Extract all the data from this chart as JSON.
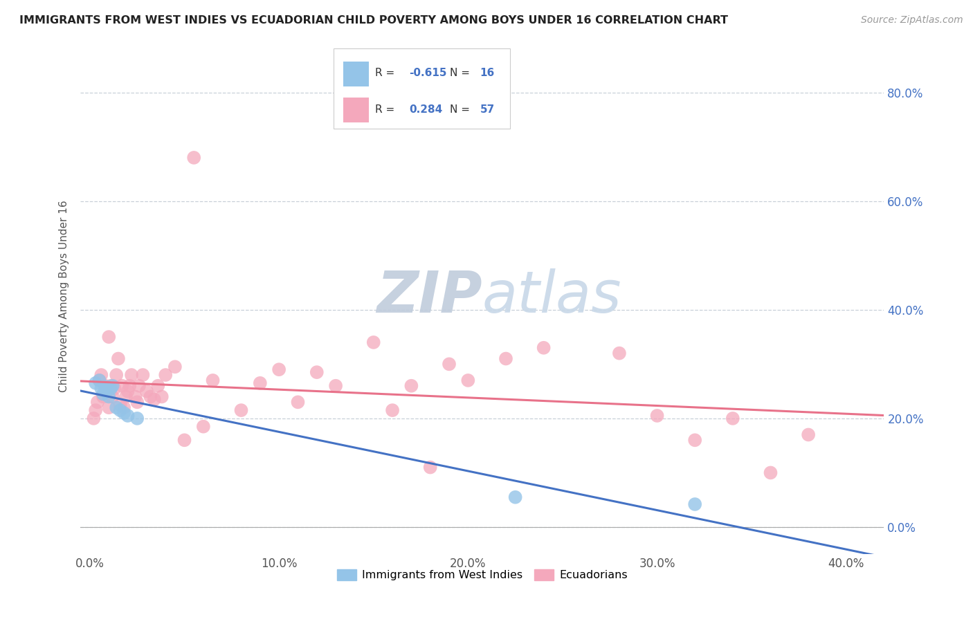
{
  "title": "IMMIGRANTS FROM WEST INDIES VS ECUADORIAN CHILD POVERTY AMONG BOYS UNDER 16 CORRELATION CHART",
  "source": "Source: ZipAtlas.com",
  "ylabel": "Child Poverty Among Boys Under 16",
  "legend1_label": "Immigrants from West Indies",
  "legend2_label": "Ecuadorians",
  "R1": -0.615,
  "N1": 16,
  "R2": 0.284,
  "N2": 57,
  "xlim": [
    -0.005,
    0.42
  ],
  "ylim": [
    -0.05,
    0.9
  ],
  "yticks": [
    0.0,
    0.2,
    0.4,
    0.6,
    0.8
  ],
  "ytick_labels": [
    "0.0%",
    "20.0%",
    "40.0%",
    "60.0%",
    "80.0%"
  ],
  "xticks": [
    0.0,
    0.1,
    0.2,
    0.3,
    0.4
  ],
  "xtick_labels": [
    "0.0%",
    "10.0%",
    "20.0%",
    "30.0%",
    "40.0%"
  ],
  "blue_color": "#94c4e8",
  "pink_color": "#f4a8bc",
  "blue_line_color": "#4472c4",
  "pink_line_color": "#e8728a",
  "watermark_color": "#c8d8ec",
  "grid_color": "#c8d0d8",
  "background_color": "#ffffff",
  "blue_scatter_x": [
    0.003,
    0.005,
    0.006,
    0.007,
    0.008,
    0.009,
    0.01,
    0.011,
    0.012,
    0.014,
    0.016,
    0.018,
    0.02,
    0.025,
    0.225,
    0.32
  ],
  "blue_scatter_y": [
    0.265,
    0.27,
    0.255,
    0.245,
    0.25,
    0.258,
    0.24,
    0.255,
    0.26,
    0.22,
    0.215,
    0.21,
    0.205,
    0.2,
    0.055,
    0.042
  ],
  "pink_scatter_x": [
    0.002,
    0.003,
    0.004,
    0.005,
    0.006,
    0.007,
    0.008,
    0.009,
    0.01,
    0.01,
    0.011,
    0.012,
    0.013,
    0.014,
    0.015,
    0.016,
    0.017,
    0.018,
    0.019,
    0.02,
    0.021,
    0.022,
    0.024,
    0.025,
    0.026,
    0.028,
    0.03,
    0.032,
    0.034,
    0.036,
    0.038,
    0.04,
    0.045,
    0.05,
    0.055,
    0.06,
    0.065,
    0.08,
    0.09,
    0.1,
    0.11,
    0.12,
    0.13,
    0.15,
    0.16,
    0.17,
    0.18,
    0.19,
    0.2,
    0.22,
    0.24,
    0.28,
    0.3,
    0.32,
    0.34,
    0.36,
    0.38
  ],
  "pink_scatter_y": [
    0.2,
    0.215,
    0.23,
    0.27,
    0.28,
    0.24,
    0.26,
    0.25,
    0.22,
    0.35,
    0.26,
    0.24,
    0.255,
    0.28,
    0.31,
    0.225,
    0.26,
    0.22,
    0.24,
    0.25,
    0.26,
    0.28,
    0.24,
    0.23,
    0.26,
    0.28,
    0.25,
    0.24,
    0.235,
    0.26,
    0.24,
    0.28,
    0.295,
    0.16,
    0.68,
    0.185,
    0.27,
    0.215,
    0.265,
    0.29,
    0.23,
    0.285,
    0.26,
    0.34,
    0.215,
    0.26,
    0.11,
    0.3,
    0.27,
    0.31,
    0.33,
    0.32,
    0.205,
    0.16,
    0.2,
    0.1,
    0.17
  ]
}
